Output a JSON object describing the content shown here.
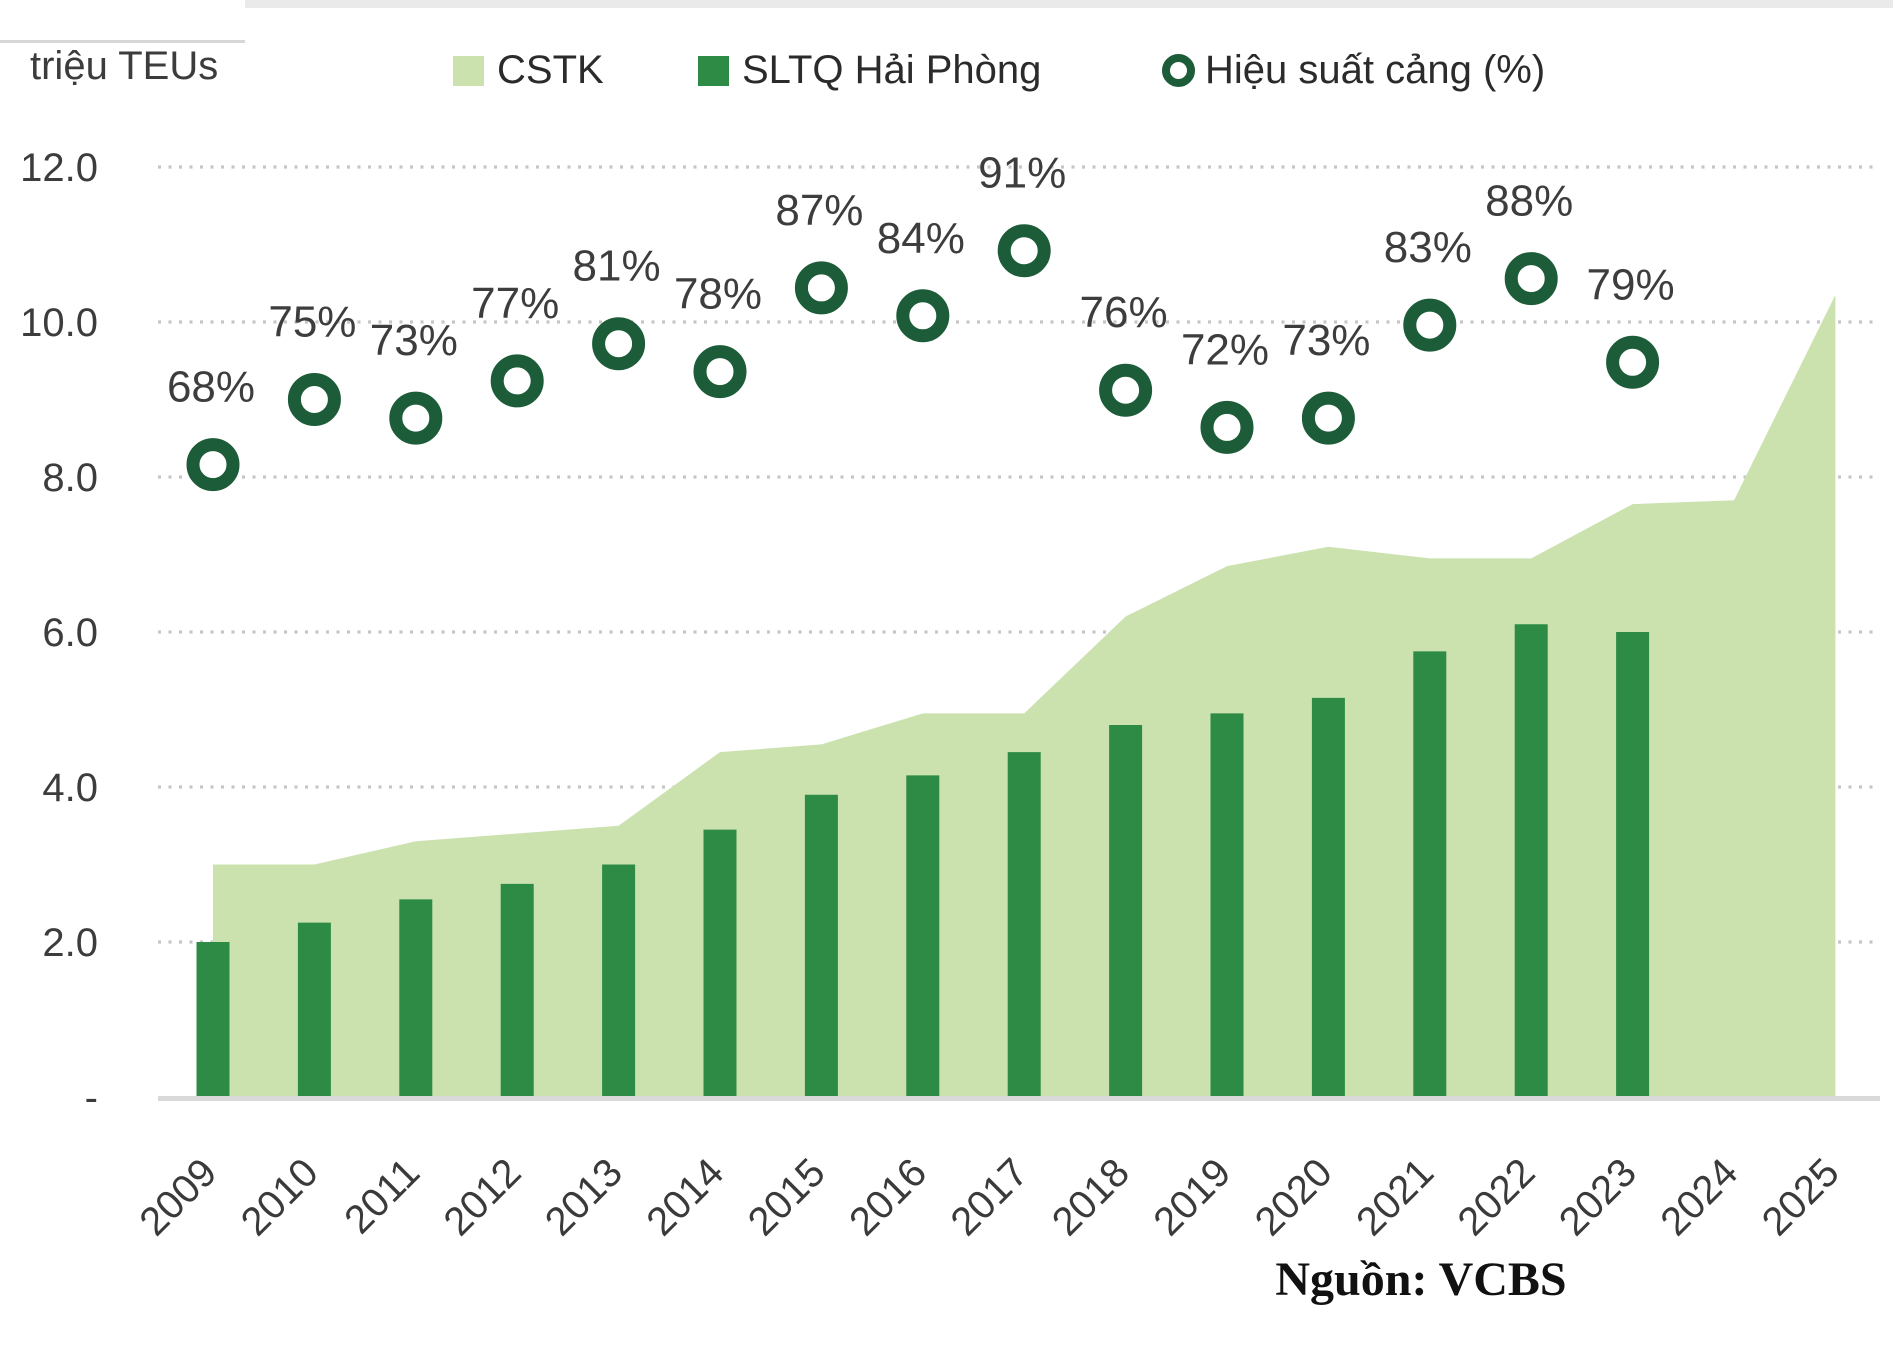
{
  "unit_label": "triệu TEUs",
  "source_note": "Nguồn: VCBS",
  "legend": {
    "items": [
      {
        "label": "CSTK",
        "marker": "square",
        "color": "#cbe2af"
      },
      {
        "label": "SLTQ Hải Phòng",
        "marker": "square",
        "color": "#2e8b45"
      },
      {
        "label": "Hiệu suất cảng (%)",
        "marker": "ring",
        "color": "#1d5c38"
      }
    ]
  },
  "colors": {
    "area": "#cbe2af",
    "bar": "#2e8b45",
    "ring": "#1d5c38",
    "gridline": "#c6c6c6",
    "axis_line": "#d9d9d9",
    "text": "#3c3c3c"
  },
  "chart_data": {
    "type": "combo",
    "categories": [
      "2009",
      "2010",
      "2011",
      "2012",
      "2013",
      "2014",
      "2015",
      "2016",
      "2017",
      "2018",
      "2019",
      "2020",
      "2021",
      "2022",
      "2023",
      "2024",
      "2025"
    ],
    "title": "",
    "xlabel": "",
    "ylabel": "triệu TEUs",
    "y_axis": {
      "ticks": [
        "12.0",
        "10.0",
        "8.0",
        "6.0",
        "4.0",
        "2.0",
        "-"
      ],
      "tick_values": [
        12,
        10,
        8,
        6,
        4,
        2,
        0
      ],
      "ylim": [
        0,
        12.4
      ],
      "gridlines": "dotted horizontal"
    },
    "secondary_axis": {
      "visible": false,
      "note": "ring series plotted as percent, 0-100% spans 0-12 on primary axis"
    },
    "legend_position": "top",
    "series": [
      {
        "name": "CSTK",
        "type": "area",
        "color": "#cbe2af",
        "values": [
          3.0,
          3.0,
          3.3,
          3.4,
          3.5,
          4.45,
          4.55,
          4.95,
          4.95,
          6.2,
          6.85,
          7.1,
          6.95,
          6.95,
          7.65,
          7.7,
          10.35
        ]
      },
      {
        "name": "SLTQ Hải Phòng",
        "type": "bar",
        "color": "#2e8b45",
        "values": [
          2.0,
          2.25,
          2.55,
          2.75,
          3.0,
          3.45,
          3.9,
          4.15,
          4.45,
          4.8,
          4.95,
          5.15,
          5.75,
          6.1,
          6.0,
          null,
          null
        ]
      },
      {
        "name": "Hiệu suất cảng (%)",
        "type": "scatter",
        "marker": "ring",
        "color": "#1d5c38",
        "percent_values": [
          68,
          75,
          73,
          77,
          81,
          78,
          87,
          84,
          91,
          76,
          72,
          73,
          83,
          88,
          79,
          null,
          null
        ],
        "labels": [
          "68%",
          "75%",
          "73%",
          "77%",
          "81%",
          "78%",
          "87%",
          "84%",
          "91%",
          "76%",
          "72%",
          "73%",
          "83%",
          "88%",
          "79%",
          null,
          null
        ]
      }
    ]
  }
}
